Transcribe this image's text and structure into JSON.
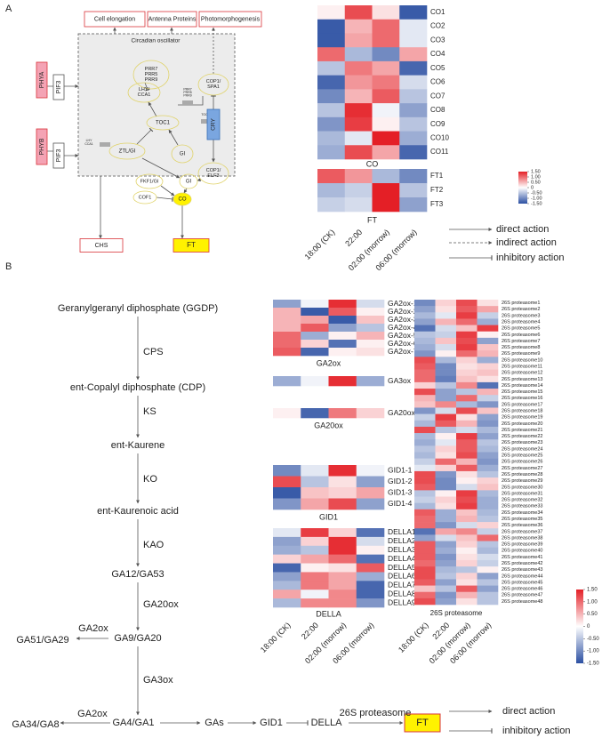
{
  "panel_a": {
    "label": "A",
    "nodes": [
      {
        "label": "Cell elongation"
      },
      {
        "label": "Antenna Proteins"
      },
      {
        "label": "Photomorphogenesis"
      },
      {
        "label": "Circadian oscillator"
      },
      {
        "label": "PHYA"
      },
      {
        "label": "PIF3"
      },
      {
        "label": "PHYB"
      },
      {
        "label": "PIF3"
      },
      {
        "lines": [
          "PRR7",
          "PRR5",
          "PRR9"
        ]
      },
      {
        "lines": [
          "PRR7",
          "PRR5",
          "PRR9"
        ]
      },
      {
        "lines": [
          "LHY/",
          "CCA1"
        ]
      },
      {
        "lines": [
          "LHY",
          "CCA1"
        ]
      },
      {
        "label": "TOC1"
      },
      {
        "label": "TOC1"
      },
      {
        "label": "ZTL/GI"
      },
      {
        "label": "GI"
      },
      {
        "lines": [
          "COP1/",
          "SPA1"
        ]
      },
      {
        "label": "CRY"
      },
      {
        "lines": [
          "COP1/",
          "ELF3"
        ]
      },
      {
        "label": "GI"
      },
      {
        "label": "FKF1/GI"
      },
      {
        "label": "COF1"
      },
      {
        "label": "CO"
      },
      {
        "label": "CHS"
      },
      {
        "label": "FT"
      }
    ],
    "legend": [
      "direct action",
      "indirect action",
      "inhibitory action"
    ]
  },
  "panel_b": {
    "label": "B",
    "compounds": [
      "Geranylgeranyl diphosphate (GGDP)",
      "ent-Copalyl diphosphate (CDP)",
      "ent-Kaurene",
      "ent-Kaurenoic acid",
      "GA12/GA53",
      "GA9/GA20",
      "GA4/GA1"
    ],
    "enzymes": [
      "CPS",
      "KS",
      "KO",
      "KAO",
      "GA20ox",
      "GA3ox"
    ],
    "side_products": [
      {
        "product": "GA51/GA29",
        "enzyme": "GA2ox"
      },
      {
        "product": "GA34/GA8",
        "enzyme": "GA2ox"
      }
    ],
    "signaling": [
      "GAs",
      "GID1",
      "DELLA",
      "FT"
    ],
    "signaling_enzyme": "26S proteasome",
    "legend": [
      "direct action",
      "inhibitory action"
    ]
  },
  "chart_data": [
    {
      "type": "heatmap",
      "title": "CO",
      "rows": [
        "CO1",
        "CO2",
        "CO3",
        "CO4",
        "CO5",
        "CO6",
        "CO7",
        "CO8",
        "CO9",
        "CO10",
        "CO11"
      ],
      "values": [
        [
          0.1,
          1.2,
          0.2,
          -1.4
        ],
        [
          -1.4,
          0.5,
          1.0,
          -0.2
        ],
        [
          -1.4,
          0.6,
          1.0,
          -0.2
        ],
        [
          1.0,
          -0.6,
          -1.0,
          0.6
        ],
        [
          -0.5,
          0.9,
          0.6,
          -1.3
        ],
        [
          -1.3,
          0.7,
          0.9,
          -0.3
        ],
        [
          -1.0,
          0.5,
          1.1,
          -0.5
        ],
        [
          -0.5,
          1.4,
          -0.1,
          -0.8
        ],
        [
          -0.9,
          1.3,
          0.1,
          -0.5
        ],
        [
          -0.6,
          -0.2,
          1.5,
          -0.7
        ],
        [
          -0.7,
          1.2,
          0.6,
          -1.3
        ]
      ]
    },
    {
      "type": "heatmap",
      "title": "FT",
      "rows": [
        "FT1",
        "FT2",
        "FT3"
      ],
      "columns": [
        "18:00 (CK)",
        "22:00",
        "02:00 (morrow)",
        "06:00 (morrow)"
      ],
      "values": [
        [
          1.1,
          0.7,
          -0.6,
          -1.0
        ],
        [
          -0.6,
          -0.4,
          1.5,
          -0.5
        ],
        [
          -0.4,
          -0.3,
          1.5,
          -0.8
        ]
      ]
    },
    {
      "type": "colorbar",
      "lim": [
        -1.5,
        1.5
      ],
      "ticks": [
        {
          "value": 1.5,
          "label": "1.50"
        },
        {
          "value": 1.0,
          "label": "1.00"
        },
        {
          "value": 0.5,
          "label": "0.50"
        },
        0,
        {
          "value": -0.5,
          "label": "-0.50"
        },
        {
          "value": -1.0,
          "label": "-1.00"
        },
        {
          "value": -1.5,
          "label": "-1.50"
        }
      ],
      "colors": [
        "#2b4fa2",
        "#ffffff",
        "#e41f26"
      ]
    },
    {
      "type": "heatmap",
      "title": "GA2ox",
      "rows": [
        "GA2ox-1",
        "GA2ox-2",
        "GA2ox-3",
        "GA2ox-4",
        "GA2ox-5",
        "GA2ox-6",
        "GA2ox-7"
      ],
      "values": [
        [
          -0.8,
          -0.1,
          1.4,
          -0.3
        ],
        [
          0.5,
          -1.4,
          1.1,
          0.1
        ],
        [
          0.5,
          0.6,
          -1.4,
          0.4
        ],
        [
          0.5,
          1.1,
          -0.8,
          -0.5
        ],
        [
          1.0,
          -0.7,
          0.1,
          0.5
        ],
        [
          1.0,
          0.3,
          -1.2,
          0.1
        ],
        [
          1.1,
          -1.3,
          0.1,
          0.2
        ]
      ]
    },
    {
      "type": "heatmap",
      "rows": [
        "GA3ox"
      ],
      "values": [
        [
          -0.7,
          -0.1,
          1.4,
          -0.7
        ]
      ]
    },
    {
      "type": "heatmap",
      "title": "GA20ox",
      "rows": [
        "GA20ox"
      ],
      "values": [
        [
          0.1,
          -1.3,
          0.9,
          0.3
        ]
      ]
    },
    {
      "type": "heatmap",
      "title": "GID1",
      "rows": [
        "GID1-1",
        "GID1-2",
        "GID1-3",
        "GID1-4"
      ],
      "values": [
        [
          -1.0,
          -0.2,
          1.4,
          -0.1
        ],
        [
          1.2,
          -0.5,
          0.2,
          -0.8
        ],
        [
          -1.4,
          0.4,
          0.3,
          0.6
        ],
        [
          -0.9,
          0.6,
          1.2,
          -0.8
        ]
      ]
    },
    {
      "type": "heatmap",
      "title": "DELLA",
      "rows": [
        "DELLA1",
        "DELLA2",
        "DELLA3",
        "DELLA4",
        "DELLA5",
        "DELLA6",
        "DELLA7",
        "DELLA8",
        "DELLA9"
      ],
      "columns": [
        "18:00 (CK)",
        "22:00",
        "02:00 (morrow)",
        "06:00 (morrow)"
      ],
      "values": [
        [
          -0.2,
          1.3,
          0.3,
          -1.2
        ],
        [
          -0.8,
          0.3,
          1.4,
          -0.3
        ],
        [
          -0.7,
          -0.5,
          1.4,
          0.1
        ],
        [
          0.3,
          0.6,
          1.0,
          -1.2
        ],
        [
          -1.3,
          0.1,
          0.2,
          1.1
        ],
        [
          -0.8,
          0.9,
          0.6,
          -0.7
        ],
        [
          -0.6,
          0.9,
          0.6,
          -1.3
        ],
        [
          0.6,
          -0.1,
          0.8,
          -1.3
        ],
        [
          -0.6,
          0.8,
          0.8,
          -0.9
        ]
      ]
    },
    {
      "type": "heatmap",
      "title": "26S proteasome",
      "rows": [
        "26S proteasome1",
        "26S proteasome2",
        "26S proteasome3",
        "26S proteasome4",
        "26S proteasome5",
        "26S proteasome6",
        "26S proteasome7",
        "26S proteasome8",
        "26S proteasome9",
        "26S proteasome10",
        "26S proteasome11",
        "26S proteasome12",
        "26S proteasome13",
        "26S proteasome14",
        "26S proteasome15",
        "26S proteasome16",
        "26S proteasome17",
        "26S proteasome18",
        "26S proteasome19",
        "26S proteasome20",
        "26S proteasome21",
        "26S proteasome22",
        "26S proteasome23",
        "26S proteasome24",
        "26S proteasome25",
        "26S proteasome26",
        "26S proteasome27",
        "26S proteasome28",
        "26S proteasome29",
        "26S proteasome30",
        "26S proteasome31",
        "26S proteasome32",
        "26S proteasome33",
        "26S proteasome34",
        "26S proteasome35",
        "26S proteasome36",
        "26S proteasome37",
        "26S proteasome38",
        "26S proteasome39",
        "26S proteasome40",
        "26S proteasome41",
        "26S proteasome42",
        "26S proteasome43",
        "26S proteasome44",
        "26S proteasome45",
        "26S proteasome46",
        "26S proteasome47",
        "26S proteasome48"
      ],
      "columns": [
        "18:00 (CK)",
        "22:00",
        "02:00 (morrow)",
        "06:00 (morrow)"
      ],
      "values": [
        [
          -1.0,
          0.3,
          1.2,
          0.2
        ],
        [
          -0.8,
          0.2,
          1.1,
          0.6
        ],
        [
          -0.6,
          -0.2,
          1.3,
          -0.4
        ],
        [
          -0.8,
          0.5,
          1.0,
          -0.7
        ],
        [
          -1.2,
          -0.3,
          0.4,
          1.3
        ],
        [
          -0.5,
          -0.4,
          1.3,
          0.1
        ],
        [
          -0.6,
          0.4,
          1.2,
          -0.8
        ],
        [
          -0.7,
          -0.3,
          1.3,
          0.4
        ],
        [
          -0.9,
          0.1,
          1.0,
          0.5
        ],
        [
          1.2,
          -0.6,
          0.3,
          -0.7
        ],
        [
          1.1,
          -1.0,
          0.2,
          0.3
        ],
        [
          1.0,
          -1.0,
          0.3,
          0.4
        ],
        [
          1.0,
          -1.1,
          0.4,
          0.2
        ],
        [
          0.3,
          -0.5,
          0.8,
          -1.2
        ],
        [
          1.2,
          -0.8,
          -0.5,
          0.5
        ],
        [
          0.5,
          -0.8,
          1.0,
          -0.4
        ],
        [
          0.4,
          0.8,
          -0.6,
          -0.9
        ],
        [
          -0.9,
          -0.3,
          1.2,
          0.4
        ],
        [
          -0.4,
          1.3,
          0.2,
          -0.8
        ],
        [
          -0.6,
          1.1,
          0.5,
          -0.9
        ],
        [
          1.2,
          -0.5,
          -0.3,
          -0.6
        ],
        [
          -0.6,
          0.1,
          1.3,
          -0.8
        ],
        [
          -0.7,
          -0.2,
          1.1,
          -0.5
        ],
        [
          -0.5,
          0.3,
          1.1,
          -0.6
        ],
        [
          -0.6,
          0.2,
          1.2,
          -0.8
        ],
        [
          -0.4,
          1.0,
          0.5,
          -0.9
        ],
        [
          -0.2,
          0.3,
          1.1,
          -0.7
        ],
        [
          1.2,
          -0.9,
          0.2,
          -0.5
        ],
        [
          1.2,
          -1.0,
          0.1,
          0.3
        ],
        [
          1.1,
          -1.0,
          -0.3,
          0.4
        ],
        [
          -0.5,
          0.1,
          1.3,
          -0.6
        ],
        [
          -0.4,
          0.3,
          1.2,
          -0.7
        ],
        [
          -0.6,
          0.2,
          1.3,
          -0.7
        ],
        [
          1.1,
          -0.7,
          0.4,
          -0.6
        ],
        [
          1.0,
          -0.7,
          0.5,
          -0.5
        ],
        [
          1.0,
          -0.9,
          -0.3,
          0.3
        ],
        [
          -1.2,
          0.6,
          0.8,
          -0.4
        ],
        [
          -0.8,
          -0.3,
          0.4,
          1.0
        ],
        [
          1.1,
          -0.8,
          0.3,
          -0.5
        ],
        [
          1.1,
          -0.7,
          0.1,
          -0.6
        ],
        [
          1.1,
          -0.9,
          0.2,
          -0.3
        ],
        [
          1.0,
          -0.8,
          0.3,
          -0.4
        ],
        [
          1.2,
          -0.6,
          -0.5,
          0.1
        ],
        [
          1.2,
          -0.5,
          0.3,
          -0.8
        ],
        [
          1.1,
          -0.8,
          0.2,
          -0.5
        ],
        [
          0.4,
          -0.5,
          1.1,
          -0.8
        ],
        [
          1.0,
          -0.9,
          0.5,
          -0.5
        ],
        [
          1.2,
          -0.8,
          0.2,
          -0.5
        ]
      ]
    },
    {
      "type": "colorbar",
      "lim": [
        -1.5,
        1.5
      ],
      "ticks": [
        {
          "value": 1.5,
          "label": "1.50"
        },
        {
          "value": 1.0,
          "label": "1.00"
        },
        {
          "value": 0.5,
          "label": "0.50"
        },
        0,
        {
          "value": -0.5,
          "label": "-0.50"
        },
        {
          "value": -1.0,
          "label": "-1.00"
        },
        {
          "value": -1.5,
          "label": "-1.50"
        }
      ],
      "colors": [
        "#2b4fa2",
        "#ffffff",
        "#e41f26"
      ]
    }
  ]
}
